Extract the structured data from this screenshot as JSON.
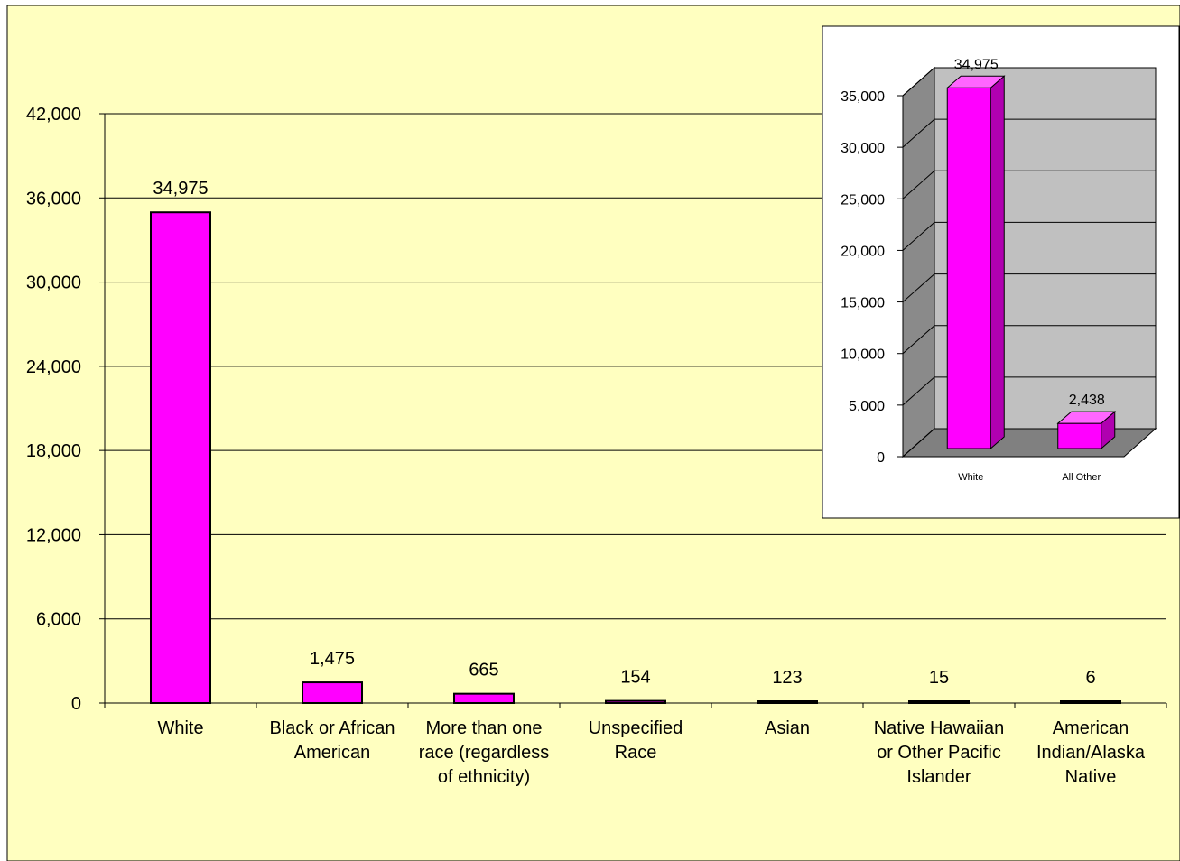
{
  "colors": {
    "page_background": "#ffffc0",
    "bar_fill": "#ff00ff",
    "bar_side": "#b000b0",
    "bar_top": "#ff66ff",
    "bar_outline": "#000000",
    "inset_background": "#ffffff",
    "inset_wall": "#c0c0c0",
    "inset_wall_side": "#8a8a8a",
    "inset_floor": "#808080"
  },
  "chart_data": [
    {
      "type": "bar",
      "categories": [
        [
          "White"
        ],
        [
          "Black or African",
          "American"
        ],
        [
          "More than one",
          "race (regardless",
          "of ethnicity)"
        ],
        [
          "Unspecified",
          "Race"
        ],
        [
          "Asian"
        ],
        [
          "Native Hawaiian",
          "or Other Pacific",
          "Islander"
        ],
        [
          "American",
          "Indian/Alaska",
          "Native"
        ]
      ],
      "values": [
        34975,
        1475,
        665,
        154,
        123,
        15,
        6
      ],
      "data_labels": [
        "34,975",
        "1,475",
        "665",
        "154",
        "123",
        "15",
        "6"
      ],
      "ylim": [
        0,
        42000
      ],
      "yticks": [
        0,
        6000,
        12000,
        18000,
        24000,
        30000,
        36000,
        42000
      ],
      "ytick_labels": [
        "0",
        "6,000",
        "12,000",
        "18,000",
        "24,000",
        "30,000",
        "36,000",
        "42,000"
      ],
      "grid": true,
      "title": "",
      "xlabel": "",
      "ylabel": ""
    },
    {
      "type": "bar",
      "style": "3d",
      "categories": [
        "White",
        "All Other"
      ],
      "values": [
        34975,
        2438
      ],
      "data_labels": [
        "34,975",
        "2,438"
      ],
      "ylim": [
        0,
        35000
      ],
      "yticks": [
        0,
        5000,
        10000,
        15000,
        20000,
        25000,
        30000,
        35000
      ],
      "ytick_labels": [
        "0",
        "5,000",
        "10,000",
        "15,000",
        "20,000",
        "25,000",
        "30,000",
        "35,000"
      ],
      "grid": true,
      "title": "",
      "xlabel": "",
      "ylabel": ""
    }
  ]
}
